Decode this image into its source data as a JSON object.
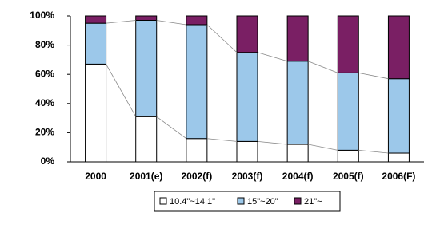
{
  "chart_data": {
    "type": "bar",
    "stacked": true,
    "categories": [
      "2000",
      "2001(e)",
      "2002(f)",
      "2003(f)",
      "2004(f)",
      "2005(f)",
      "2006(F)"
    ],
    "series": [
      {
        "name": "10.4\"~14.1\"",
        "color": "#ffffff",
        "values": [
          67,
          31,
          16,
          14,
          12,
          8,
          6
        ]
      },
      {
        "name": "15\"~20\"",
        "color": "#9cc8ea",
        "values": [
          28,
          66,
          78,
          61,
          57,
          53,
          51
        ]
      },
      {
        "name": "21\"~",
        "color": "#7a1f64",
        "values": [
          5,
          3,
          6,
          25,
          31,
          39,
          43
        ]
      }
    ],
    "ylim": [
      0,
      100
    ],
    "yticks": [
      {
        "value": 0,
        "label": "0%"
      },
      {
        "value": 20,
        "label": "20%"
      },
      {
        "value": 40,
        "label": "40%"
      },
      {
        "value": 60,
        "label": "60%"
      },
      {
        "value": 80,
        "label": "80%"
      },
      {
        "value": 100,
        "label": "100%"
      }
    ],
    "legend": "bottom"
  }
}
